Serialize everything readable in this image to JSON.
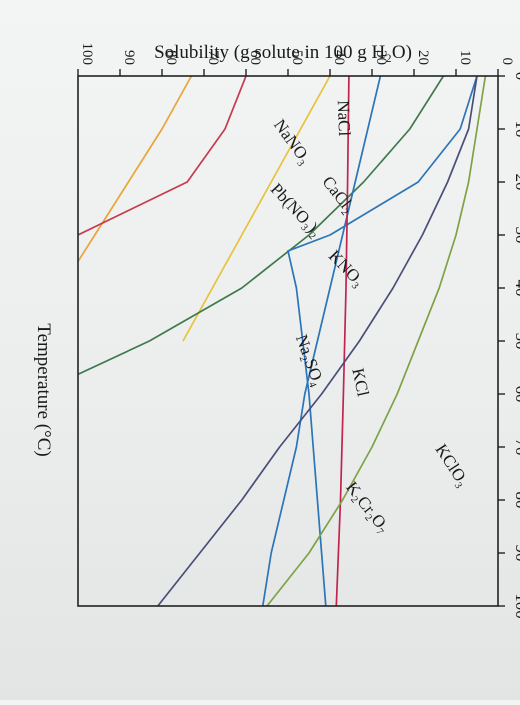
{
  "chart_data": {
    "type": "line",
    "xlabel": "Temperature (°C)",
    "ylabel": "Solubility (g solute in 100 g H₂O)",
    "xlim": [
      0,
      100
    ],
    "ylim": [
      0,
      100
    ],
    "x_ticks": [
      "0",
      "10",
      "20",
      "30",
      "40",
      "50",
      "60",
      "70",
      "80",
      "90",
      "100"
    ],
    "y_ticks": [
      "0",
      "10",
      "20",
      "30",
      "40",
      "50",
      "60",
      "70",
      "80",
      "90",
      "100"
    ],
    "grid": false,
    "series": [
      {
        "name": "NaNO₃",
        "color": "#e9a53a",
        "x": [
          0,
          10,
          20,
          30,
          40,
          50
        ],
        "y": [
          73,
          80,
          88,
          96,
          104,
          112
        ]
      },
      {
        "name": "CaCl₂",
        "color": "#c73b4e",
        "x": [
          0,
          10,
          20,
          30
        ],
        "y": [
          60,
          65,
          74,
          100
        ]
      },
      {
        "name": "Pb(NO₃)₂",
        "color": "#e6c33a",
        "x": [
          0,
          10,
          20,
          30,
          40,
          50
        ],
        "y": [
          40,
          47,
          54,
          61,
          68,
          75
        ]
      },
      {
        "name": "KNO₃",
        "color": "#3f7a4c",
        "x": [
          0,
          10,
          20,
          30,
          40,
          50,
          60
        ],
        "y": [
          13,
          21,
          32,
          45,
          61,
          83,
          110
        ]
      },
      {
        "name": "Na₂SO₄",
        "color": "#2b75b8",
        "x": [
          0,
          10,
          20,
          30,
          33,
          40,
          50,
          60,
          70,
          80,
          90,
          100
        ],
        "y": [
          5,
          9,
          19,
          40,
          50,
          48,
          46.5,
          45,
          44,
          43,
          42,
          41
        ]
      },
      {
        "name": "KCl",
        "color": "#2b75b8",
        "x": [
          0,
          10,
          20,
          30,
          40,
          50,
          60,
          70,
          80,
          90,
          100
        ],
        "y": [
          28,
          31,
          34,
          37,
          40,
          43,
          46,
          48,
          51,
          54,
          56
        ]
      },
      {
        "name": "NaCl",
        "color": "#c0244f",
        "x": [
          0,
          20,
          40,
          60,
          80,
          100
        ],
        "y": [
          35.5,
          35.8,
          36.2,
          36.8,
          37.5,
          38.5
        ]
      },
      {
        "name": "K₂Cr₂O₇",
        "color": "#4a4f78",
        "x": [
          0,
          10,
          20,
          30,
          40,
          50,
          60,
          70,
          80,
          90,
          100
        ],
        "y": [
          5,
          7,
          12,
          18,
          25,
          33,
          42,
          52,
          61,
          71,
          81
        ]
      },
      {
        "name": "KClO₃",
        "color": "#7ea344",
        "x": [
          0,
          10,
          20,
          30,
          40,
          50,
          60,
          70,
          80,
          90,
          100
        ],
        "y": [
          3,
          5,
          7,
          10,
          14,
          19,
          24,
          30,
          37,
          45,
          55
        ]
      }
    ]
  }
}
